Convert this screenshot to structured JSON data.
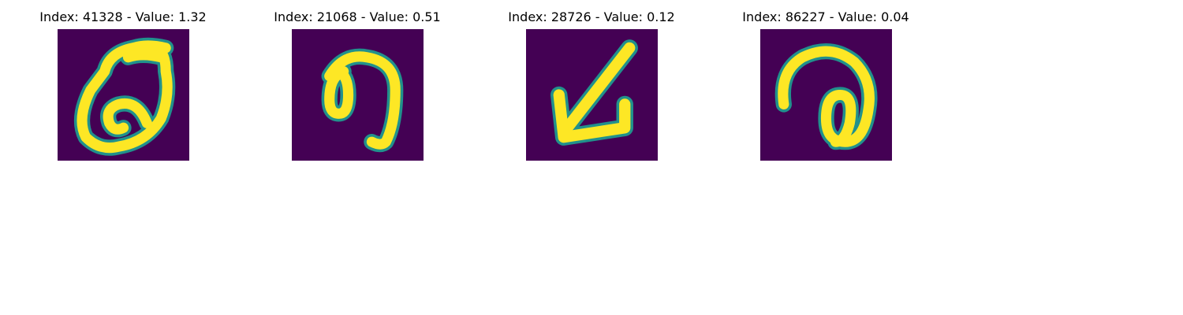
{
  "figure": {
    "panels": [
      {
        "index": "41328",
        "value": "1.32",
        "title": "Index: 41328 - Value: 1.32",
        "glyph": "handwritten-loop-digit"
      },
      {
        "index": "21068",
        "value": "0.51",
        "title": "Index: 21068 - Value: 0.51",
        "glyph": "handwritten-curl-digit"
      },
      {
        "index": "28726",
        "value": "0.12",
        "title": "Index: 28726 - Value: 0.12",
        "glyph": "handwritten-arrow-digit"
      },
      {
        "index": "86227",
        "value": "0.04",
        "title": "Index: 86227 - Value: 0.04",
        "glyph": "handwritten-hook-digit"
      }
    ],
    "colors": {
      "background": "#440154",
      "stroke_core": "#fde725",
      "stroke_edge": "#21918c",
      "stroke_mid": "#5ec962"
    }
  }
}
